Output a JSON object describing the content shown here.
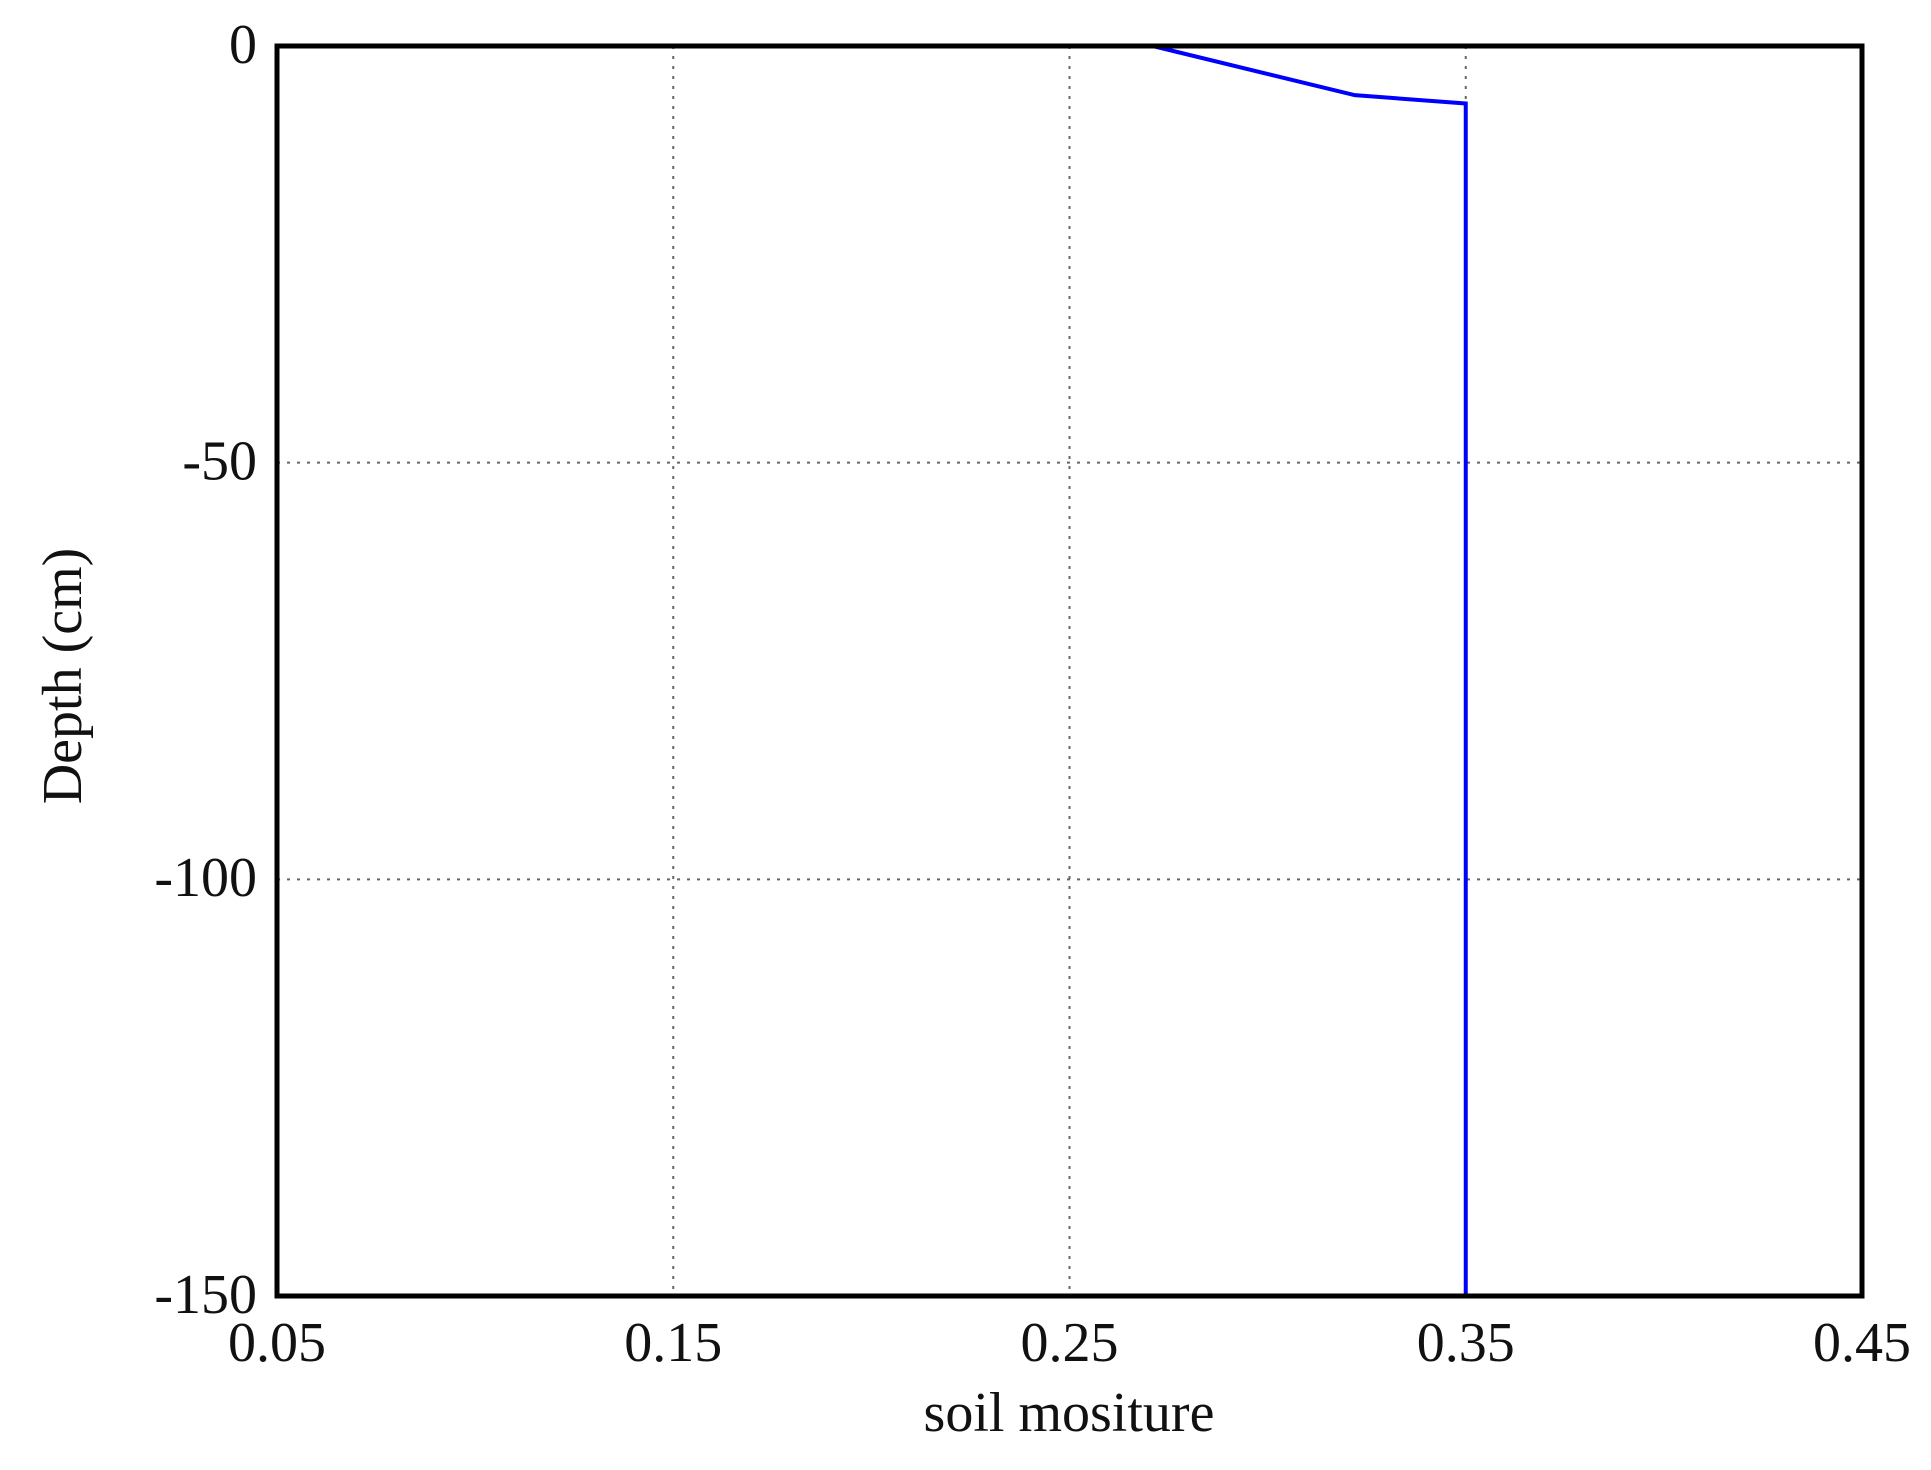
{
  "chart_data": {
    "type": "line",
    "x_label": "soil mositure",
    "y_label": "Depth (cm)",
    "series": [
      {
        "color": "#0000ff",
        "x": [
          0.271,
          0.322,
          0.35,
          0.35
        ],
        "values": [
          0,
          -5.9,
          -6.9,
          -150
        ]
      }
    ],
    "xlim": [
      0.05,
      0.45
    ],
    "xticks": [
      0.05,
      0.15,
      0.25,
      0.35,
      0.45
    ],
    "ylim": [
      -150,
      0
    ],
    "yticks": [
      0,
      -50,
      -100,
      -150
    ],
    "grid": true
  }
}
